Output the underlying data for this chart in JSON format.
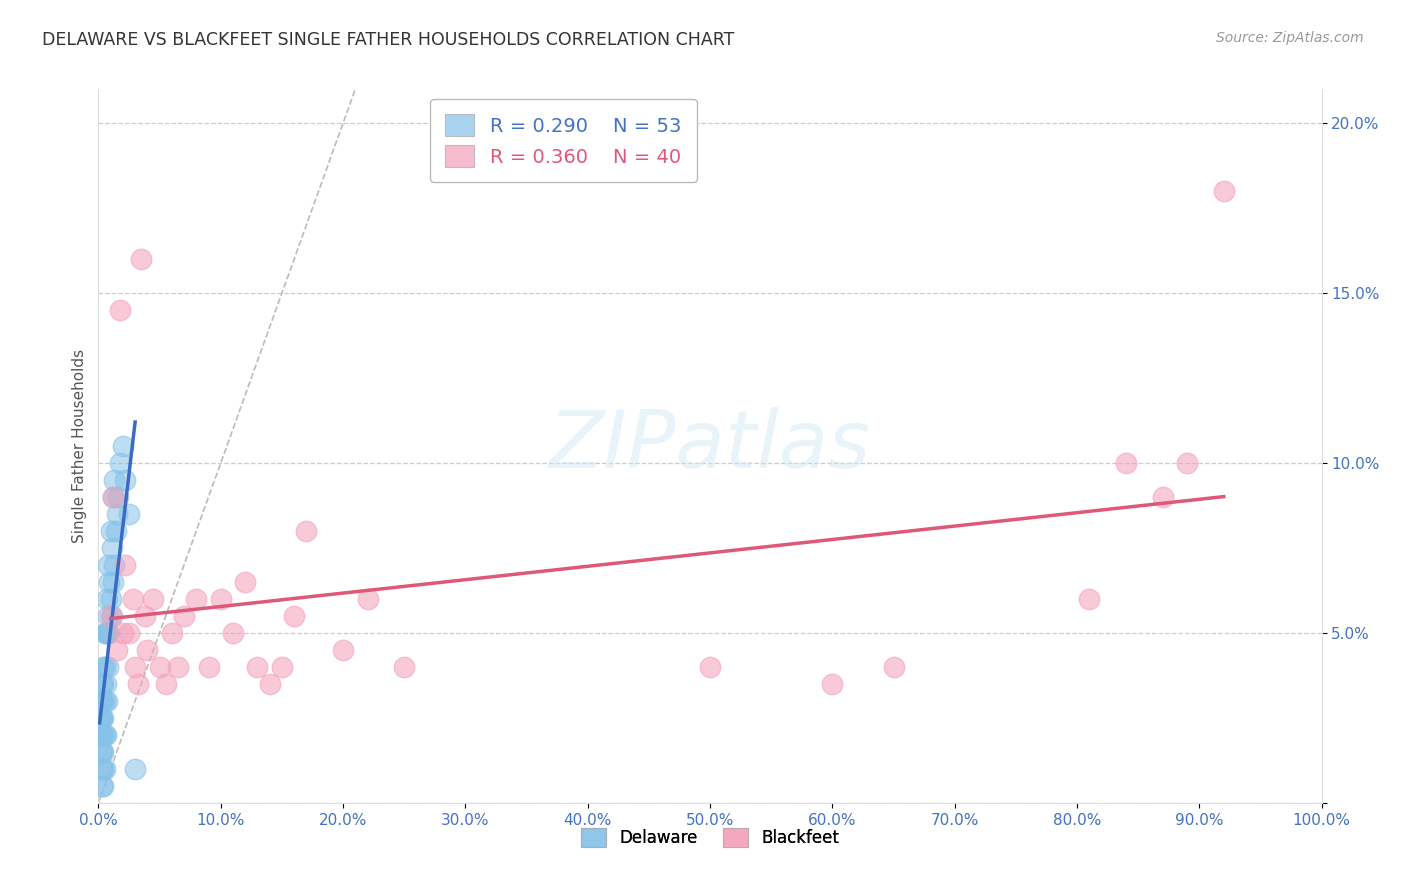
{
  "title": "DELAWARE VS BLACKFEET SINGLE FATHER HOUSEHOLDS CORRELATION CHART",
  "source": "Source: ZipAtlas.com",
  "ylabel": "Single Father Households",
  "xlim": [
    0,
    1.0
  ],
  "ylim": [
    0,
    0.21
  ],
  "xtick_vals": [
    0.0,
    0.1,
    0.2,
    0.3,
    0.4,
    0.5,
    0.6,
    0.7,
    0.8,
    0.9,
    1.0
  ],
  "xtick_labels": [
    "0.0%",
    "10.0%",
    "20.0%",
    "30.0%",
    "40.0%",
    "50.0%",
    "60.0%",
    "70.0%",
    "80.0%",
    "90.0%",
    "100.0%"
  ],
  "ytick_vals": [
    0.0,
    0.05,
    0.1,
    0.15,
    0.2
  ],
  "ytick_labels": [
    "",
    "5.0%",
    "10.0%",
    "15.0%",
    "20.0%"
  ],
  "background_color": "#ffffff",
  "watermark_text": "ZIPatlas",
  "delaware_color": "#85c1e8",
  "blackfeet_color": "#f4a0b8",
  "delaware_line_color": "#3a6bc4",
  "blackfeet_line_color": "#e05878",
  "delaware_R": 0.29,
  "delaware_N": 53,
  "blackfeet_R": 0.36,
  "blackfeet_N": 40,
  "delaware_x": [
    0.001,
    0.001,
    0.002,
    0.002,
    0.002,
    0.002,
    0.003,
    0.003,
    0.003,
    0.003,
    0.003,
    0.003,
    0.003,
    0.004,
    0.004,
    0.004,
    0.004,
    0.004,
    0.004,
    0.004,
    0.004,
    0.005,
    0.005,
    0.005,
    0.005,
    0.005,
    0.006,
    0.006,
    0.006,
    0.007,
    0.007,
    0.007,
    0.008,
    0.008,
    0.008,
    0.009,
    0.009,
    0.01,
    0.01,
    0.011,
    0.011,
    0.012,
    0.012,
    0.013,
    0.013,
    0.014,
    0.015,
    0.016,
    0.018,
    0.02,
    0.022,
    0.025,
    0.03
  ],
  "delaware_y": [
    0.02,
    0.025,
    0.015,
    0.02,
    0.025,
    0.03,
    0.005,
    0.01,
    0.015,
    0.02,
    0.025,
    0.03,
    0.035,
    0.005,
    0.01,
    0.015,
    0.02,
    0.025,
    0.03,
    0.035,
    0.04,
    0.01,
    0.02,
    0.03,
    0.04,
    0.05,
    0.02,
    0.035,
    0.05,
    0.03,
    0.05,
    0.06,
    0.04,
    0.055,
    0.07,
    0.05,
    0.065,
    0.06,
    0.08,
    0.055,
    0.075,
    0.065,
    0.09,
    0.07,
    0.095,
    0.08,
    0.085,
    0.09,
    0.1,
    0.105,
    0.095,
    0.085,
    0.01
  ],
  "blackfeet_x": [
    0.01,
    0.012,
    0.015,
    0.018,
    0.02,
    0.022,
    0.025,
    0.028,
    0.03,
    0.032,
    0.035,
    0.038,
    0.04,
    0.045,
    0.05,
    0.055,
    0.06,
    0.065,
    0.07,
    0.08,
    0.09,
    0.1,
    0.11,
    0.12,
    0.13,
    0.14,
    0.15,
    0.16,
    0.17,
    0.2,
    0.22,
    0.25,
    0.5,
    0.6,
    0.65,
    0.81,
    0.84,
    0.87,
    0.89,
    0.92
  ],
  "blackfeet_y": [
    0.055,
    0.09,
    0.045,
    0.145,
    0.05,
    0.07,
    0.05,
    0.06,
    0.04,
    0.035,
    0.16,
    0.055,
    0.045,
    0.06,
    0.04,
    0.035,
    0.05,
    0.04,
    0.055,
    0.06,
    0.04,
    0.06,
    0.05,
    0.065,
    0.04,
    0.035,
    0.04,
    0.055,
    0.08,
    0.045,
    0.06,
    0.04,
    0.04,
    0.035,
    0.04,
    0.06,
    0.1,
    0.09,
    0.1,
    0.18
  ]
}
